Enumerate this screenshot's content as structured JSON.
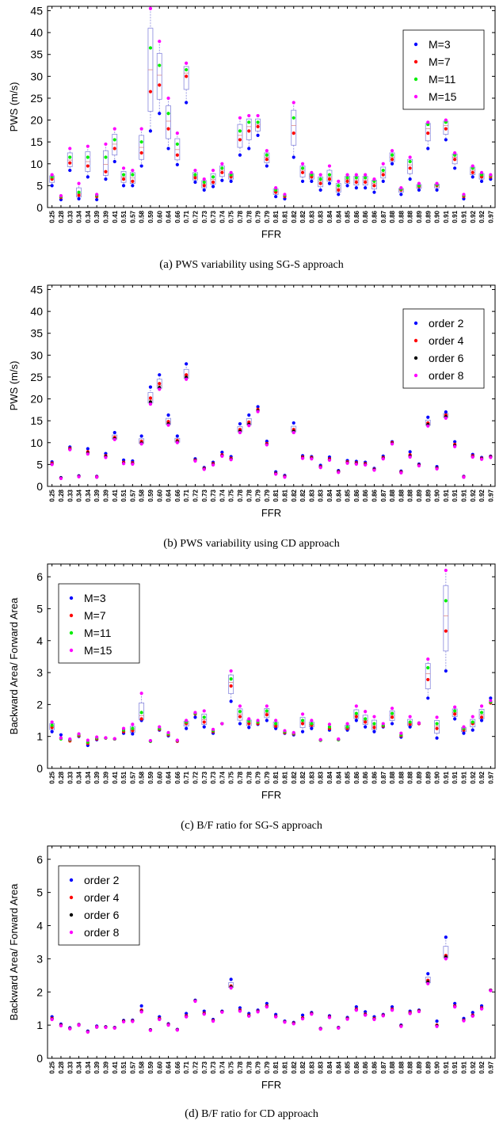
{
  "ffr_ticks": [
    "0.25",
    "0.28",
    "0.33",
    "0.34",
    "0.34",
    "0.39",
    "0.39",
    "0.41",
    "0.51",
    "0.57",
    "0.58",
    "0.59",
    "0.60",
    "0.64",
    "0.66",
    "0.71",
    "0.72",
    "0.73",
    "0.73",
    "0.74",
    "0.75",
    "0.78",
    "0.78",
    "0.79",
    "0.79",
    "0.81",
    "0.81",
    "0.82",
    "0.82",
    "0.83",
    "0.83",
    "0.84",
    "0.84",
    "0.85",
    "0.86",
    "0.86",
    "0.86",
    "0.87",
    "0.88",
    "0.88",
    "0.88",
    "0.89",
    "0.89",
    "0.90",
    "0.91",
    "0.91",
    "0.91",
    "0.92",
    "0.92",
    "0.97"
  ],
  "chart_data": [
    {
      "id": "a",
      "type": "scatter",
      "caption_letter": "(a)",
      "caption_text": "PWS variability using SG-S approach",
      "xlabel": "FFR",
      "ylabel": "PWS (m/s)",
      "ylim": [
        0,
        46
      ],
      "yticks": [
        0,
        5,
        10,
        15,
        20,
        25,
        30,
        35,
        40,
        45
      ],
      "legend": "top-right",
      "colors": [
        "#0000ff",
        "#ff0000",
        "#00ee00",
        "#ff00ff"
      ],
      "legend_labels": [
        "M=3",
        "M=7",
        "M=11",
        "M=15"
      ],
      "boxplots": true,
      "series": [
        {
          "values": [
            5.0,
            1.8,
            8.5,
            2.0,
            7.0,
            1.8,
            6.5,
            10.5,
            5.0,
            5.0,
            9.5,
            17.5,
            21.5,
            13.5,
            9.8,
            24.0,
            5.8,
            4.0,
            4.8,
            6.2,
            6.0,
            12.0,
            13.5,
            16.5,
            9.5,
            2.5,
            2.0,
            11.5,
            6.0,
            6.0,
            4.0,
            5.5,
            3.0,
            5.0,
            4.5,
            4.5,
            3.5,
            6.0,
            10.0,
            3.0,
            6.5,
            4.0,
            13.5,
            4.0,
            15.5,
            9.0,
            2.0,
            7.0,
            6.0,
            6.5
          ]
        },
        {
          "values": [
            6.5,
            2.3,
            10.2,
            2.8,
            9.5,
            2.5,
            8.2,
            13.5,
            6.5,
            6.0,
            12.5,
            26.5,
            28.0,
            18.0,
            12.0,
            30.0,
            6.8,
            5.0,
            5.8,
            8.0,
            7.0,
            15.5,
            17.5,
            18.5,
            11.0,
            3.5,
            2.5,
            17.0,
            8.0,
            7.0,
            5.5,
            6.5,
            4.0,
            6.0,
            5.8,
            5.8,
            5.0,
            7.5,
            11.0,
            4.0,
            9.0,
            4.8,
            17.0,
            5.0,
            18.0,
            11.0,
            2.5,
            8.0,
            7.0,
            7.0
          ]
        },
        {
          "values": [
            7.0,
            2.5,
            11.5,
            3.5,
            11.5,
            2.8,
            11.5,
            15.5,
            7.5,
            7.5,
            15.0,
            36.5,
            32.5,
            21.5,
            14.5,
            31.5,
            7.5,
            5.8,
            7.0,
            9.0,
            7.5,
            17.5,
            19.5,
            19.5,
            12.0,
            4.0,
            2.8,
            20.5,
            9.0,
            7.5,
            6.5,
            7.5,
            5.0,
            6.8,
            6.8,
            6.8,
            6.0,
            8.5,
            12.0,
            4.2,
            10.5,
            5.0,
            19.0,
            5.2,
            19.5,
            12.0,
            2.8,
            9.0,
            7.5,
            7.3
          ]
        },
        {
          "values": [
            7.5,
            2.7,
            13.5,
            5.5,
            14.0,
            3.0,
            14.5,
            18.0,
            9.0,
            8.5,
            18.0,
            45.5,
            38.0,
            25.0,
            17.0,
            33.0,
            8.5,
            6.5,
            8.5,
            10.0,
            8.0,
            20.5,
            21.0,
            21.0,
            13.0,
            4.5,
            3.0,
            24.0,
            10.0,
            8.0,
            7.5,
            9.5,
            6.0,
            7.5,
            7.5,
            7.5,
            6.5,
            10.0,
            13.0,
            4.5,
            11.5,
            5.5,
            19.5,
            5.5,
            20.0,
            12.5,
            3.0,
            9.5,
            8.0,
            7.5
          ]
        }
      ]
    },
    {
      "id": "b",
      "type": "scatter",
      "caption_letter": "(b)",
      "caption_text": "PWS variability using CD approach",
      "xlabel": "FFR",
      "ylabel": "PWS (m/s)",
      "ylim": [
        0,
        46
      ],
      "yticks": [
        0,
        5,
        10,
        15,
        20,
        25,
        30,
        35,
        40,
        45
      ],
      "legend": "top-right",
      "colors": [
        "#0000ff",
        "#ff0000",
        "#000000",
        "#ff00ff"
      ],
      "legend_labels": [
        "order 2",
        "order 4",
        "order 6",
        "order 8"
      ],
      "boxplots": true,
      "series": [
        {
          "values": [
            5.6,
            2.0,
            9.0,
            2.4,
            8.6,
            2.3,
            7.5,
            12.3,
            6.0,
            5.8,
            11.5,
            22.7,
            25.5,
            16.3,
            11.5,
            28.0,
            6.3,
            4.3,
            5.5,
            7.8,
            6.8,
            14.3,
            16.3,
            18.2,
            10.3,
            3.3,
            2.5,
            14.5,
            7.0,
            6.8,
            4.8,
            6.7,
            3.6,
            5.9,
            5.7,
            5.5,
            4.1,
            6.9,
            10.2,
            3.5,
            7.9,
            5.1,
            15.8,
            4.5,
            17.0,
            10.2,
            2.3,
            7.3,
            6.6,
            6.9
          ]
        },
        {
          "values": [
            5.3,
            1.9,
            8.7,
            2.3,
            7.9,
            2.2,
            7.0,
            11.2,
            5.5,
            5.4,
            10.3,
            20.2,
            23.5,
            14.8,
            10.5,
            25.5,
            6.0,
            4.1,
            5.2,
            7.2,
            6.4,
            13.0,
            14.7,
            17.6,
            9.8,
            3.0,
            2.3,
            13.0,
            6.7,
            6.6,
            4.5,
            6.3,
            3.4,
            5.6,
            5.4,
            5.2,
            3.9,
            6.6,
            10.0,
            3.3,
            7.2,
            4.9,
            14.5,
            4.2,
            16.3,
            9.6,
            2.2,
            7.0,
            6.4,
            6.8
          ]
        },
        {
          "values": [
            5.1,
            1.9,
            8.5,
            2.3,
            7.6,
            2.1,
            6.8,
            10.9,
            5.3,
            5.2,
            9.9,
            19.3,
            22.6,
            14.3,
            10.2,
            24.9,
            5.9,
            4.0,
            5.0,
            7.0,
            6.2,
            12.6,
            14.2,
            17.3,
            9.6,
            2.9,
            2.2,
            12.6,
            6.5,
            6.4,
            4.4,
            6.1,
            3.3,
            5.4,
            5.2,
            5.0,
            3.8,
            6.4,
            9.8,
            3.2,
            6.9,
            4.8,
            14.1,
            4.1,
            15.9,
            9.3,
            2.1,
            6.8,
            6.3,
            6.7
          ]
        },
        {
          "values": [
            5.0,
            1.8,
            8.4,
            2.2,
            7.4,
            2.1,
            6.6,
            10.7,
            5.2,
            5.1,
            9.7,
            18.8,
            22.2,
            14.0,
            10.0,
            24.5,
            5.8,
            3.9,
            4.9,
            6.9,
            6.1,
            12.3,
            13.9,
            17.1,
            9.5,
            2.8,
            2.1,
            12.3,
            6.4,
            6.3,
            4.3,
            6.0,
            3.2,
            5.3,
            5.1,
            4.9,
            3.7,
            6.3,
            9.7,
            3.1,
            6.7,
            4.7,
            13.8,
            4.0,
            15.6,
            9.1,
            2.1,
            6.7,
            6.2,
            6.6
          ]
        }
      ]
    },
    {
      "id": "c",
      "type": "scatter",
      "caption_letter": "(c)",
      "caption_text": "B/F ratio for SG-S approach",
      "xlabel": "FFR",
      "ylabel": "Backward Area/ Forward Area",
      "ylim": [
        0,
        6.4
      ],
      "yticks": [
        0,
        1,
        2,
        3,
        4,
        5,
        6
      ],
      "legend": "top-left",
      "colors": [
        "#0000ff",
        "#ff0000",
        "#00ee00",
        "#ff00ff"
      ],
      "legend_labels": [
        "M=3",
        "M=7",
        "M=11",
        "M=15"
      ],
      "boxplots": true,
      "series": [
        {
          "values": [
            1.15,
            1.05,
            0.88,
            1.0,
            0.72,
            0.9,
            0.95,
            0.92,
            1.1,
            1.08,
            1.5,
            0.85,
            1.2,
            1.02,
            0.85,
            1.25,
            1.6,
            1.3,
            1.1,
            1.4,
            2.1,
            1.4,
            1.28,
            1.38,
            1.5,
            1.25,
            1.1,
            1.05,
            1.15,
            1.25,
            0.88,
            1.2,
            0.9,
            1.2,
            1.5,
            1.3,
            1.15,
            1.3,
            1.4,
            0.98,
            1.3,
            1.4,
            2.2,
            0.95,
            3.05,
            1.55,
            1.1,
            1.2,
            1.5,
            2.2
          ]
        },
        {
          "values": [
            1.28,
            0.95,
            0.86,
            1.02,
            0.78,
            0.92,
            0.95,
            0.92,
            1.15,
            1.18,
            1.55,
            0.85,
            1.22,
            1.05,
            0.85,
            1.4,
            1.7,
            1.45,
            1.15,
            1.4,
            2.58,
            1.62,
            1.4,
            1.4,
            1.68,
            1.32,
            1.12,
            1.08,
            1.4,
            1.35,
            0.88,
            1.25,
            0.9,
            1.25,
            1.62,
            1.45,
            1.28,
            1.32,
            1.6,
            1.02,
            1.38,
            1.4,
            2.78,
            1.25,
            4.3,
            1.7,
            1.2,
            1.4,
            1.6,
            2.05
          ]
        },
        {
          "values": [
            1.35,
            0.92,
            0.9,
            1.05,
            0.82,
            0.95,
            0.95,
            0.92,
            1.2,
            1.25,
            1.75,
            0.85,
            1.25,
            1.08,
            0.87,
            1.45,
            1.72,
            1.6,
            1.18,
            1.4,
            2.8,
            1.78,
            1.48,
            1.45,
            1.8,
            1.4,
            1.15,
            1.1,
            1.5,
            1.4,
            0.88,
            1.3,
            0.9,
            1.3,
            1.72,
            1.55,
            1.4,
            1.35,
            1.72,
            1.05,
            1.45,
            1.42,
            3.15,
            1.4,
            5.25,
            1.8,
            1.25,
            1.45,
            1.75,
            2.08
          ]
        },
        {
          "values": [
            1.45,
            0.95,
            0.92,
            1.08,
            0.88,
            0.98,
            0.96,
            0.93,
            1.25,
            1.38,
            2.35,
            0.87,
            1.3,
            1.12,
            0.88,
            1.5,
            1.75,
            1.8,
            1.22,
            1.4,
            3.05,
            1.95,
            1.55,
            1.5,
            1.95,
            1.5,
            1.18,
            1.12,
            1.7,
            1.5,
            0.9,
            1.38,
            0.92,
            1.4,
            1.95,
            1.78,
            1.62,
            1.4,
            1.88,
            1.1,
            1.62,
            1.42,
            3.42,
            1.6,
            6.2,
            1.92,
            1.3,
            1.62,
            1.95,
            2.12
          ]
        }
      ]
    },
    {
      "id": "d",
      "type": "scatter",
      "caption_letter": "(d)",
      "caption_text": "B/F ratio for CD approach",
      "xlabel": "FFR",
      "ylabel": "Backward Area/ Forward Area",
      "ylim": [
        0,
        6.4
      ],
      "yticks": [
        0,
        1,
        2,
        3,
        4,
        5,
        6
      ],
      "legend": "top-left",
      "colors": [
        "#0000ff",
        "#ff0000",
        "#000000",
        "#ff00ff"
      ],
      "legend_labels": [
        "order 2",
        "order 4",
        "order 6",
        "order 8"
      ],
      "boxplots": true,
      "series": [
        {
          "values": [
            1.25,
            1.03,
            0.92,
            1.02,
            0.82,
            0.97,
            0.95,
            0.93,
            1.14,
            1.15,
            1.58,
            0.86,
            1.25,
            1.04,
            0.87,
            1.35,
            1.75,
            1.42,
            1.17,
            1.42,
            2.38,
            1.52,
            1.35,
            1.45,
            1.65,
            1.32,
            1.12,
            1.08,
            1.3,
            1.38,
            0.9,
            1.28,
            0.93,
            1.23,
            1.55,
            1.4,
            1.25,
            1.32,
            1.55,
            1.0,
            1.42,
            1.45,
            2.55,
            1.12,
            3.65,
            1.65,
            1.2,
            1.38,
            1.58,
            2.05
          ]
        },
        {
          "values": [
            1.2,
            1.0,
            0.9,
            1.01,
            0.8,
            0.95,
            0.94,
            0.92,
            1.12,
            1.13,
            1.45,
            0.85,
            1.2,
            1.02,
            0.86,
            1.28,
            1.73,
            1.36,
            1.14,
            1.4,
            2.18,
            1.45,
            1.3,
            1.42,
            1.58,
            1.27,
            1.1,
            1.06,
            1.22,
            1.35,
            0.89,
            1.25,
            0.92,
            1.2,
            1.48,
            1.33,
            1.2,
            1.3,
            1.48,
            0.98,
            1.38,
            1.43,
            2.35,
            1.0,
            3.1,
            1.58,
            1.15,
            1.3,
            1.52,
            2.05
          ]
        },
        {
          "values": [
            1.18,
            0.99,
            0.9,
            1.0,
            0.8,
            0.94,
            0.94,
            0.92,
            1.11,
            1.12,
            1.42,
            0.85,
            1.18,
            1.01,
            0.86,
            1.26,
            1.73,
            1.34,
            1.13,
            1.4,
            2.15,
            1.43,
            1.28,
            1.41,
            1.56,
            1.26,
            1.1,
            1.05,
            1.2,
            1.34,
            0.89,
            1.24,
            0.92,
            1.19,
            1.46,
            1.31,
            1.18,
            1.29,
            1.46,
            0.97,
            1.36,
            1.42,
            2.3,
            0.98,
            3.05,
            1.56,
            1.14,
            1.28,
            1.5,
            2.05
          ]
        },
        {
          "values": [
            1.17,
            0.98,
            0.89,
            1.0,
            0.79,
            0.94,
            0.93,
            0.91,
            1.1,
            1.11,
            1.4,
            0.84,
            1.17,
            1.0,
            0.85,
            1.25,
            1.72,
            1.33,
            1.12,
            1.39,
            2.12,
            1.42,
            1.27,
            1.4,
            1.55,
            1.25,
            1.09,
            1.04,
            1.19,
            1.33,
            0.88,
            1.23,
            0.91,
            1.18,
            1.45,
            1.3,
            1.17,
            1.28,
            1.45,
            0.96,
            1.35,
            1.41,
            2.25,
            0.96,
            3.0,
            1.55,
            1.13,
            1.27,
            1.49,
            2.04
          ]
        }
      ]
    }
  ]
}
